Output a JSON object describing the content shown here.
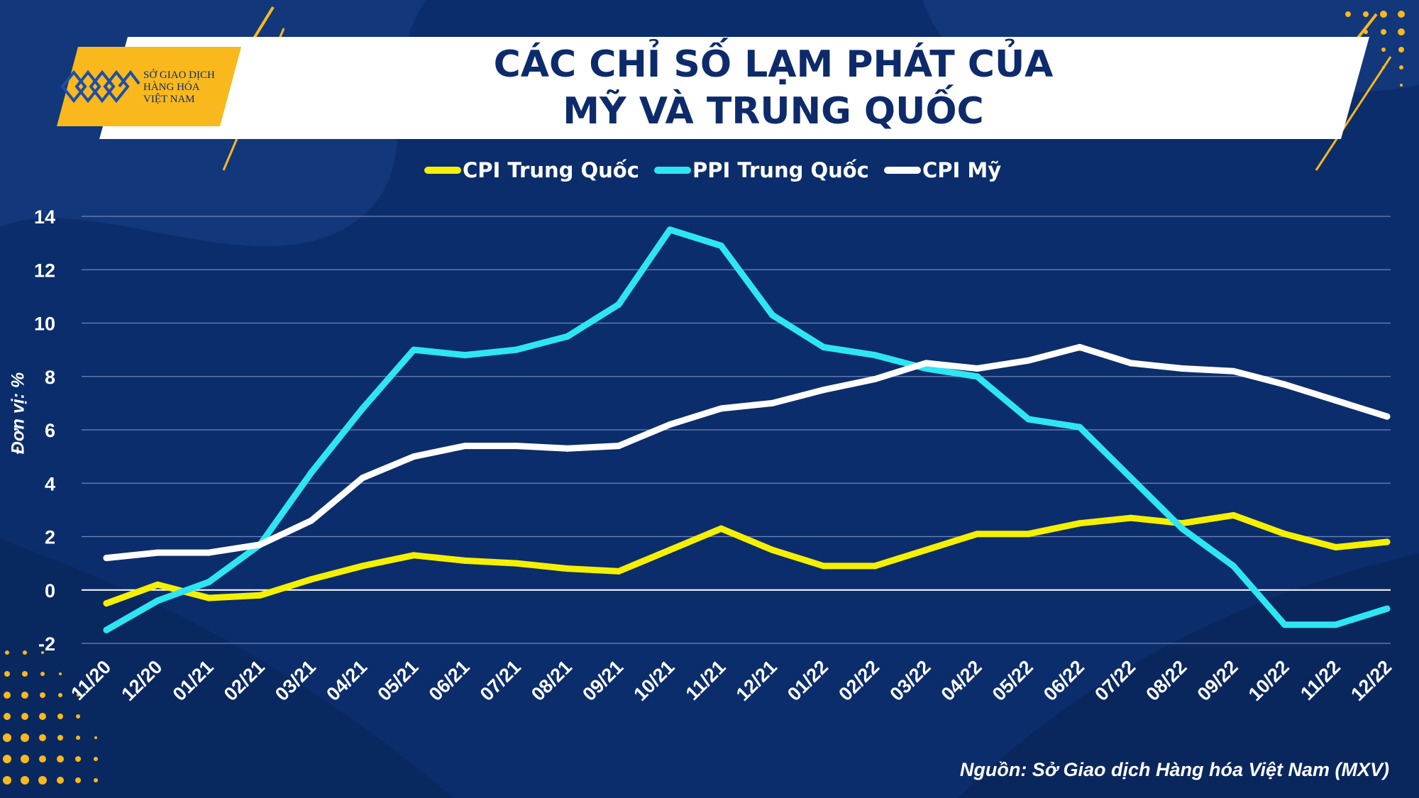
{
  "header": {
    "title_line1": "CÁC CHỈ SỐ LẠM PHÁT CỦA",
    "title_line2": "MỸ VÀ TRUNG QUỐC"
  },
  "logo": {
    "line1": "SỞ GIAO DỊCH",
    "line2": "HÀNG HÓA",
    "line3": "VIỆT NAM"
  },
  "footer": {
    "source": "Nguồn: Sở Giao dịch Hàng hóa Việt Nam (MXV)"
  },
  "colors": {
    "background": "#0c2d6b",
    "accent": "#f9b91c",
    "cpi_cn": "#f5f000",
    "ppi_cn": "#2ee6f2",
    "cpi_us": "#ffffff"
  },
  "chart_data": {
    "type": "line",
    "title": "CÁC CHỈ SỐ LẠM PHÁT CỦA MỸ VÀ TRUNG QUỐC",
    "ylabel": "Đơn vị: %",
    "xlabel": "",
    "ylim": [
      -2,
      14
    ],
    "yticks": [
      -2,
      0,
      2,
      4,
      6,
      8,
      10,
      12,
      14
    ],
    "grid": true,
    "legend_position": "top",
    "categories": [
      "11/20",
      "12/20",
      "01/21",
      "02/21",
      "03/21",
      "04/21",
      "05/21",
      "06/21",
      "07/21",
      "08/21",
      "09/21",
      "10/21",
      "11/21",
      "12/21",
      "01/22",
      "02/22",
      "03/22",
      "04/22",
      "05/22",
      "06/22",
      "07/22",
      "08/22",
      "09/22",
      "10/22",
      "11/22",
      "12/22"
    ],
    "series": [
      {
        "name": "CPI Trung Quốc",
        "color": "#f5f000",
        "values": [
          -0.5,
          0.2,
          -0.3,
          -0.2,
          0.4,
          0.9,
          1.3,
          1.1,
          1.0,
          0.8,
          0.7,
          1.5,
          2.3,
          1.5,
          0.9,
          0.9,
          1.5,
          2.1,
          2.1,
          2.5,
          2.7,
          2.5,
          2.8,
          2.1,
          1.6,
          1.8
        ]
      },
      {
        "name": "PPI Trung Quốc",
        "color": "#2ee6f2",
        "values": [
          -1.5,
          -0.4,
          0.3,
          1.7,
          4.4,
          6.8,
          9.0,
          8.8,
          9.0,
          9.5,
          10.7,
          13.5,
          12.9,
          10.3,
          9.1,
          8.8,
          8.3,
          8.0,
          6.4,
          6.1,
          4.2,
          2.3,
          0.9,
          -1.3,
          -1.3,
          -0.7
        ]
      },
      {
        "name": "CPI Mỹ",
        "color": "#ffffff",
        "values": [
          1.2,
          1.4,
          1.4,
          1.7,
          2.6,
          4.2,
          5.0,
          5.4,
          5.4,
          5.3,
          5.4,
          6.2,
          6.8,
          7.0,
          7.5,
          7.9,
          8.5,
          8.3,
          8.6,
          9.1,
          8.5,
          8.3,
          8.2,
          7.7,
          7.1,
          6.5
        ]
      }
    ]
  }
}
